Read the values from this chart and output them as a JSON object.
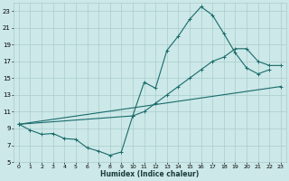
{
  "xlabel": "Humidex (Indice chaleur)",
  "bg_color": "#cce8e8",
  "grid_color": "#aacccc",
  "line_color": "#1a6b6b",
  "xlim": [
    -0.5,
    23.5
  ],
  "ylim": [
    5,
    24
  ],
  "xticks": [
    0,
    1,
    2,
    3,
    4,
    5,
    6,
    7,
    8,
    9,
    10,
    11,
    12,
    13,
    14,
    15,
    16,
    17,
    18,
    19,
    20,
    21,
    22,
    23
  ],
  "yticks": [
    5,
    7,
    9,
    11,
    13,
    15,
    17,
    19,
    21,
    23
  ],
  "series": [
    {
      "x": [
        0,
        1,
        2,
        3,
        4,
        5,
        6,
        7,
        8,
        9,
        10,
        11,
        12,
        13,
        14,
        15,
        16,
        17,
        18,
        19,
        20,
        21,
        22
      ],
      "y": [
        9.5,
        8.8,
        8.3,
        8.4,
        7.8,
        7.7,
        6.7,
        6.3,
        5.8,
        6.2,
        10.5,
        14.5,
        13.8,
        18.3,
        20.0,
        22.0,
        23.5,
        22.5,
        20.3,
        18.0,
        16.2,
        15.5,
        16.0
      ]
    },
    {
      "x": [
        0,
        10,
        11,
        12,
        13,
        14,
        15,
        16,
        17,
        18,
        19,
        20,
        21,
        22,
        23
      ],
      "y": [
        9.5,
        10.5,
        11.0,
        12.0,
        13.0,
        14.0,
        15.0,
        16.0,
        17.0,
        17.5,
        18.5,
        18.5,
        17.0,
        16.5,
        16.5
      ]
    },
    {
      "x": [
        0,
        23
      ],
      "y": [
        9.5,
        14.0
      ]
    }
  ]
}
